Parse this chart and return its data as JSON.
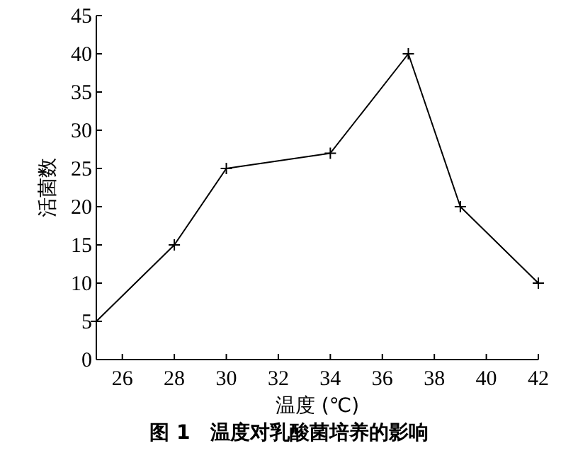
{
  "chart_data": {
    "type": "line",
    "title": "图 1　温度对乳酸菌培养的影响",
    "xlabel": "温度 (℃)",
    "ylabel": "活菌数",
    "x": [
      25,
      28,
      30,
      34,
      37,
      39,
      42
    ],
    "series": [
      {
        "color": "#000000",
        "values": [
          5,
          15,
          25,
          27,
          40,
          20,
          10
        ]
      }
    ],
    "xlim": [
      25,
      42
    ],
    "xticks": [
      26,
      28,
      30,
      32,
      34,
      36,
      38,
      40,
      42
    ],
    "ylim": [
      0,
      45
    ],
    "yticks": [
      0,
      5,
      10,
      15,
      20,
      25,
      30,
      35,
      40,
      45
    ],
    "marker": "cross",
    "line_style": "solid",
    "grid": false
  }
}
